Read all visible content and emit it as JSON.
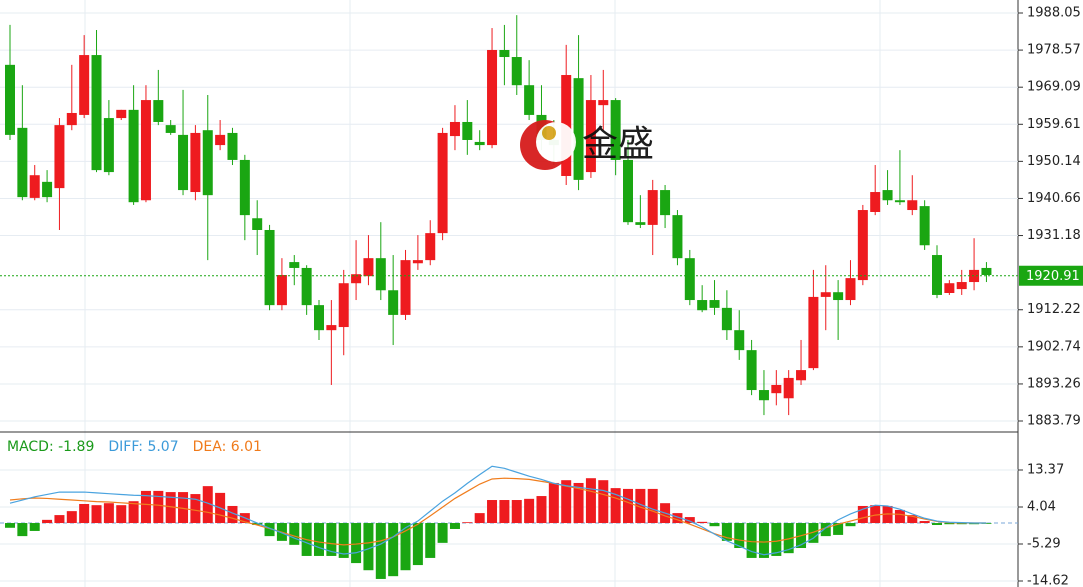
{
  "watermark": "金盛",
  "chart_data": [
    {
      "type": "candlestick",
      "up_color": "#ee1b1f",
      "down_color": "#1aa612",
      "grid": true,
      "ylim": [
        1880.98,
        1991.37
      ],
      "yticks": [
        1988.05,
        1978.57,
        1969.09,
        1959.61,
        1950.14,
        1940.66,
        1931.18,
        1912.22,
        1902.74,
        1893.26,
        1883.79
      ],
      "last_price": 1920.91,
      "last_price_color": "#1aa612",
      "ohlc": [
        [
          1974.8,
          1985.0,
          1955.6,
          1956.9
        ],
        [
          1958.7,
          1969.6,
          1940.2,
          1941.0
        ],
        [
          1940.8,
          1949.2,
          1940.2,
          1946.6
        ],
        [
          1944.9,
          1947.9,
          1939.7,
          1941.0
        ],
        [
          1943.3,
          1961.2,
          1932.6,
          1959.4
        ],
        [
          1959.4,
          1974.8,
          1958.1,
          1962.5
        ],
        [
          1962.0,
          1982.4,
          1961.2,
          1977.3
        ],
        [
          1977.3,
          1983.7,
          1947.4,
          1947.9
        ],
        [
          1961.2,
          1965.8,
          1946.6,
          1947.4
        ],
        [
          1961.2,
          1963.3,
          1960.7,
          1963.3
        ],
        [
          1963.3,
          1969.6,
          1939.0,
          1939.7
        ],
        [
          1940.2,
          1969.6,
          1939.7,
          1965.8
        ],
        [
          1965.8,
          1973.5,
          1959.4,
          1960.2
        ],
        [
          1959.4,
          1960.7,
          1956.9,
          1957.4
        ],
        [
          1956.9,
          1968.4,
          1941.5,
          1942.8
        ],
        [
          1942.3,
          1959.4,
          1940.2,
          1957.4
        ],
        [
          1958.1,
          1967.1,
          1924.9,
          1941.5
        ],
        [
          1954.3,
          1960.7,
          1953.0,
          1956.9
        ],
        [
          1957.4,
          1958.7,
          1949.2,
          1950.5
        ],
        [
          1950.5,
          1951.8,
          1930.0,
          1936.4
        ],
        [
          1935.6,
          1940.2,
          1926.2,
          1932.6
        ],
        [
          1932.6,
          1933.9,
          1912.1,
          1913.4
        ],
        [
          1913.4,
          1925.4,
          1912.1,
          1921.1
        ],
        [
          1924.4,
          1926.2,
          1918.5,
          1922.9
        ],
        [
          1922.9,
          1923.6,
          1910.9,
          1913.4
        ],
        [
          1913.4,
          1914.7,
          1904.5,
          1907.0
        ],
        [
          1907.0,
          1914.7,
          1893.0,
          1908.3
        ],
        [
          1907.8,
          1922.4,
          1900.6,
          1919.0
        ],
        [
          1919.0,
          1930.0,
          1914.7,
          1921.3
        ],
        [
          1920.8,
          1931.3,
          1918.5,
          1925.4
        ],
        [
          1925.4,
          1934.6,
          1914.7,
          1917.2
        ],
        [
          1917.2,
          1926.2,
          1903.2,
          1910.9
        ],
        [
          1910.9,
          1927.5,
          1909.6,
          1924.9
        ],
        [
          1924.1,
          1931.3,
          1922.4,
          1924.9
        ],
        [
          1924.9,
          1935.1,
          1923.6,
          1931.8
        ],
        [
          1931.8,
          1958.7,
          1930.0,
          1957.4
        ],
        [
          1956.6,
          1964.5,
          1953.0,
          1960.2
        ],
        [
          1960.2,
          1965.8,
          1951.8,
          1955.6
        ],
        [
          1955.1,
          1958.1,
          1953.0,
          1954.3
        ],
        [
          1954.3,
          1984.2,
          1953.5,
          1978.6
        ],
        [
          1978.6,
          1985.0,
          1969.6,
          1976.8
        ],
        [
          1976.8,
          1987.5,
          1967.1,
          1969.6
        ],
        [
          1969.6,
          1976.0,
          1960.7,
          1962.0
        ],
        [
          1962.0,
          1969.6,
          1953.0,
          1955.6
        ],
        [
          1955.6,
          1960.7,
          1949.2,
          1954.3
        ],
        [
          1946.4,
          1979.9,
          1944.1,
          1972.2
        ],
        [
          1971.4,
          1982.4,
          1942.8,
          1945.4
        ],
        [
          1947.4,
          1972.2,
          1945.9,
          1965.8
        ],
        [
          1964.5,
          1973.5,
          1958.1,
          1965.8
        ],
        [
          1965.8,
          1966.3,
          1946.6,
          1950.5
        ],
        [
          1950.5,
          1955.6,
          1933.9,
          1934.6
        ],
        [
          1934.6,
          1941.5,
          1933.1,
          1933.9
        ],
        [
          1933.9,
          1945.4,
          1926.2,
          1942.8
        ],
        [
          1942.8,
          1944.1,
          1933.1,
          1936.4
        ],
        [
          1936.4,
          1937.7,
          1923.6,
          1925.4
        ],
        [
          1925.4,
          1927.5,
          1913.4,
          1914.7
        ],
        [
          1914.7,
          1918.5,
          1911.6,
          1912.1
        ],
        [
          1914.7,
          1919.8,
          1910.9,
          1912.7
        ],
        [
          1912.7,
          1917.2,
          1904.5,
          1907.0
        ],
        [
          1907.0,
          1912.1,
          1899.4,
          1901.9
        ],
        [
          1901.9,
          1904.5,
          1890.4,
          1891.7
        ],
        [
          1891.7,
          1896.8,
          1885.3,
          1889.1
        ],
        [
          1890.9,
          1896.8,
          1887.8,
          1893.0
        ],
        [
          1889.6,
          1896.8,
          1885.3,
          1894.8
        ],
        [
          1894.2,
          1904.5,
          1893.0,
          1896.8
        ],
        [
          1897.3,
          1922.4,
          1896.8,
          1915.5
        ],
        [
          1915.5,
          1923.6,
          1907.0,
          1916.7
        ],
        [
          1916.7,
          1919.8,
          1904.5,
          1914.7
        ],
        [
          1914.7,
          1924.9,
          1913.4,
          1920.3
        ],
        [
          1919.8,
          1939.0,
          1918.5,
          1937.7
        ],
        [
          1937.2,
          1949.2,
          1936.4,
          1942.3
        ],
        [
          1942.8,
          1947.9,
          1939.0,
          1940.2
        ],
        [
          1940.2,
          1953.0,
          1939.0,
          1939.7
        ],
        [
          1937.7,
          1946.6,
          1936.4,
          1940.2
        ],
        [
          1938.7,
          1940.2,
          1927.5,
          1928.7
        ],
        [
          1926.2,
          1928.7,
          1915.2,
          1916.0
        ],
        [
          1916.5,
          1919.8,
          1916.0,
          1919.0
        ],
        [
          1917.5,
          1922.4,
          1916.0,
          1919.3
        ],
        [
          1919.3,
          1930.5,
          1917.2,
          1922.4
        ],
        [
          1922.9,
          1924.4,
          1919.3,
          1921.1
        ]
      ]
    },
    {
      "type": "macd",
      "grid": true,
      "ylim": [
        -16.13,
        22.95
      ],
      "yticks": [
        13.37,
        4.04,
        -5.29,
        -14.62
      ],
      "legend": [
        {
          "label": "MACD: -1.89",
          "color": "#1a9a1a"
        },
        {
          "label": "DIFF: 5.07",
          "color": "#3b9ad9"
        },
        {
          "label": "DEA: 6.01",
          "color": "#f07a1a"
        }
      ],
      "up_color": "#ee1b1f",
      "down_color": "#1aa612",
      "diff_color": "#4aa3df",
      "dea_color": "#f07d1d",
      "histogram": [
        -1.2,
        -3.3,
        -2.0,
        0.8,
        2.0,
        3.0,
        4.8,
        4.5,
        5.0,
        4.5,
        5.5,
        8.1,
        8.1,
        7.8,
        7.8,
        7.3,
        9.3,
        7.6,
        4.3,
        2.5,
        -0.5,
        -3.3,
        -4.5,
        -5.5,
        -8.3,
        -8.3,
        -8.3,
        -8.8,
        -10.1,
        -11.9,
        -14.1,
        -13.4,
        -11.9,
        -10.6,
        -8.8,
        -5.0,
        -1.5,
        0.2,
        2.5,
        5.8,
        5.8,
        5.8,
        6.1,
        6.8,
        10.1,
        10.8,
        10.1,
        11.3,
        10.8,
        8.8,
        8.6,
        8.6,
        8.6,
        5.0,
        2.5,
        1.5,
        0.3,
        -0.8,
        -4.5,
        -6.3,
        -8.8,
        -8.8,
        -8.3,
        -7.6,
        -6.3,
        -5.0,
        -3.3,
        -3.0,
        -0.8,
        4.3,
        4.5,
        4.3,
        3.3,
        2.0,
        0.5,
        -0.5,
        -0.3,
        -0.3,
        -0.3,
        -0.2
      ],
      "diff": [
        5.0,
        5.8,
        6.6,
        7.2,
        7.8,
        7.8,
        7.8,
        7.6,
        7.4,
        7.2,
        7.0,
        6.9,
        6.7,
        6.5,
        6.3,
        6.0,
        5.0,
        3.8,
        2.5,
        1.3,
        0.0,
        -1.3,
        -2.5,
        -3.8,
        -5.0,
        -6.2,
        -7.2,
        -7.8,
        -7.5,
        -6.5,
        -5.3,
        -3.5,
        -1.2,
        0.5,
        3.0,
        5.5,
        7.6,
        10.0,
        12.2,
        14.3,
        13.8,
        12.8,
        11.8,
        11.0,
        10.0,
        9.4,
        9.0,
        8.6,
        8.2,
        7.2,
        6.0,
        4.7,
        3.5,
        2.5,
        1.5,
        0.5,
        -1.0,
        -2.8,
        -4.5,
        -5.8,
        -7.2,
        -8.0,
        -7.5,
        -6.7,
        -5.5,
        -3.8,
        -1.2,
        0.8,
        2.3,
        3.5,
        4.5,
        4.3,
        3.5,
        2.3,
        1.2,
        0.5,
        0.2,
        0.1,
        0.0,
        0.0
      ],
      "dea": [
        5.8,
        6.1,
        6.3,
        6.2,
        6.0,
        5.8,
        5.6,
        5.4,
        5.3,
        5.1,
        4.9,
        4.7,
        4.5,
        4.1,
        3.7,
        3.2,
        2.7,
        2.0,
        1.2,
        0.3,
        -0.5,
        -1.4,
        -2.3,
        -3.3,
        -4.2,
        -4.8,
        -5.2,
        -5.5,
        -5.3,
        -5.0,
        -4.5,
        -3.5,
        -2.0,
        -0.3,
        1.8,
        4.0,
        6.2,
        8.0,
        9.8,
        11.1,
        11.3,
        11.2,
        11.0,
        10.5,
        10.0,
        9.3,
        8.7,
        8.0,
        7.2,
        6.3,
        5.2,
        4.0,
        3.0,
        1.8,
        0.8,
        -0.3,
        -1.5,
        -2.7,
        -3.7,
        -4.3,
        -4.7,
        -4.8,
        -4.6,
        -4.0,
        -3.2,
        -2.3,
        -1.2,
        -0.3,
        0.5,
        1.3,
        2.0,
        2.3,
        2.2,
        1.7,
        1.0,
        0.4,
        0.1,
        0.0,
        0.0,
        0.0
      ]
    }
  ]
}
